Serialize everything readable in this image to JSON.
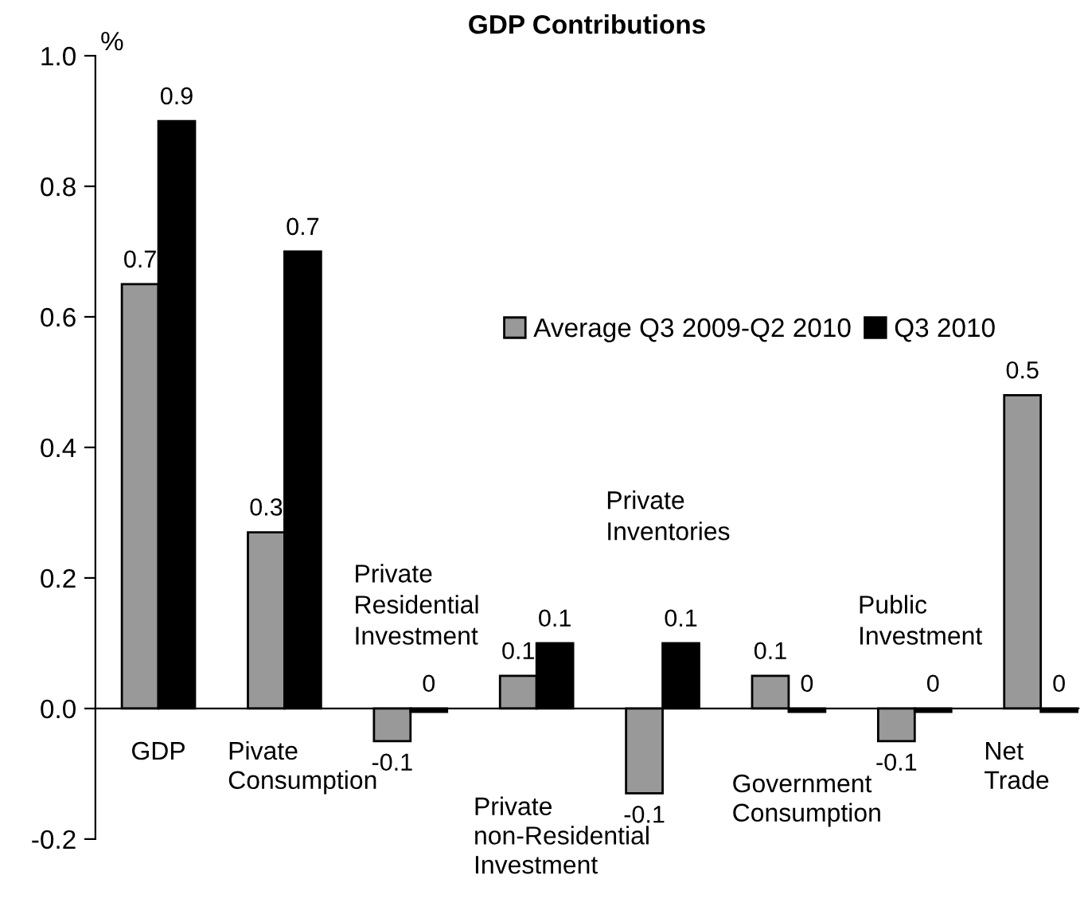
{
  "chart_data": {
    "type": "bar",
    "title": "GDP Contributions",
    "ylabel": "%",
    "categories": [
      "GDP",
      "Pivate Consumption",
      "Private Residential Investment",
      "Private non-Residential Investment",
      "Private Inventories",
      "Government Consumption",
      "Public Investment",
      "Net Trade"
    ],
    "series": [
      {
        "name": "Average Q3 2009-Q2 2010",
        "color": "#999999",
        "values": [
          0.65,
          0.27,
          -0.05,
          0.05,
          -0.13,
          0.05,
          -0.05,
          0.48
        ],
        "value_labels": [
          "0.7",
          "0.3",
          "-0.1",
          "0.1",
          "-0.1",
          "0.1",
          "-0.1",
          "0.5"
        ]
      },
      {
        "name": "Q3 2010",
        "color": "#000000",
        "values": [
          0.9,
          0.7,
          -0.005,
          0.1,
          0.1,
          -0.005,
          -0.005,
          -0.005
        ],
        "value_labels": [
          "0.9",
          "0.7",
          "0",
          "0.1",
          "0.1",
          "0",
          "0",
          "0"
        ]
      }
    ],
    "ylim": [
      -0.2,
      1.0
    ],
    "yticks": [
      {
        "value": -0.2,
        "label": "-0.2"
      },
      {
        "value": 0,
        "label": "0.0"
      },
      {
        "value": 0.2,
        "label": "0.2"
      },
      {
        "value": 0.4,
        "label": "0.4"
      },
      {
        "value": 0.6,
        "label": "0.6"
      },
      {
        "value": 0.8,
        "label": "0.8"
      },
      {
        "value": 1.0,
        "label": "1.0"
      }
    ],
    "grid": false,
    "legend": "right"
  }
}
